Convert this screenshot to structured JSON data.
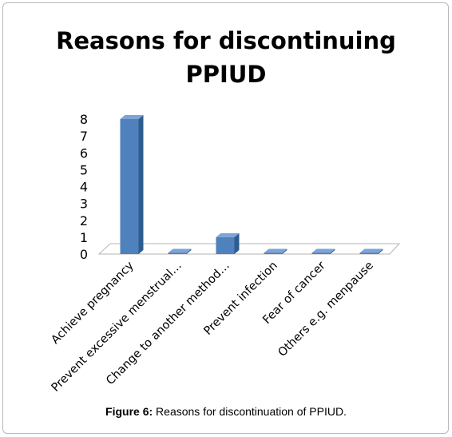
{
  "chart_data": {
    "type": "bar",
    "title_lines": [
      "Reasons for discontinuing",
      "PPIUD"
    ],
    "categories": [
      "Achieve pregnancy",
      "Prevent excessive menstrual…",
      "Change to another method…",
      "Prevent infection",
      "Fear of cancer",
      "Others e.g. menpause"
    ],
    "values": [
      8,
      0,
      1,
      0,
      0,
      0
    ],
    "y_ticks": [
      "0",
      "1",
      "2",
      "3",
      "4",
      "5",
      "6",
      "7",
      "8"
    ],
    "ylim": [
      0,
      8
    ],
    "grid": false,
    "legend": "none",
    "bar_color": "#4f81bd",
    "bar_side_color": "#2e5c8f",
    "bar_top_color": "#7ea3d6"
  },
  "caption": {
    "label": "Figure 6:",
    "text": " Reasons for discontinuation of PPIUD."
  }
}
